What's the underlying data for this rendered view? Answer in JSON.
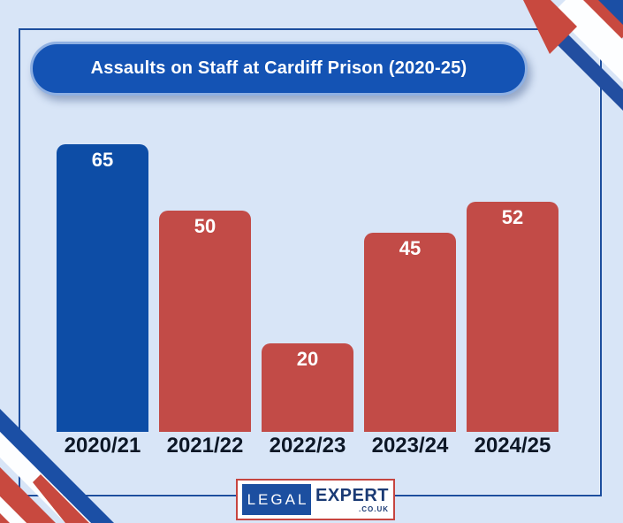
{
  "title_banner": {
    "text": "Assaults on Staff at Cardiff Prison (2020-25)"
  },
  "chart_data": {
    "type": "bar",
    "title": "Assaults on Staff at Cardiff Prison (2020-25)",
    "categories": [
      "2020/21",
      "2021/22",
      "2022/23",
      "2023/24",
      "2024/25"
    ],
    "values": [
      65,
      50,
      20,
      45,
      52
    ],
    "xlabel": "",
    "ylabel": "",
    "ylim": [
      0,
      70
    ],
    "grid": false,
    "legend": false,
    "value_labels_shown": true,
    "bar_colors": [
      "#0d4da6",
      "#c24b47",
      "#c24b47",
      "#c24b47",
      "#c24b47"
    ]
  },
  "logo": {
    "part1": "LEGAL",
    "part2": "EXPERT",
    "part3": ".CO.UK"
  },
  "colors": {
    "background": "#d8e5f7",
    "frame_border": "#1d4e9e",
    "banner_fill": "#1453b4",
    "banner_border": "#8fb0e2",
    "bar_blue": "#0d4da6",
    "bar_red": "#c24b47",
    "x_label_text": "#0d1726",
    "value_label_text": "#ffffff",
    "stripe_red": "#c8493f",
    "stripe_white": "#fdfeff",
    "stripe_blue": "#1b4fa5",
    "stripe_navy": "#224ea0",
    "logo_border": "#c64540",
    "logo_blue_box": "#1c4fa0",
    "logo_text": "#1a3a74"
  }
}
